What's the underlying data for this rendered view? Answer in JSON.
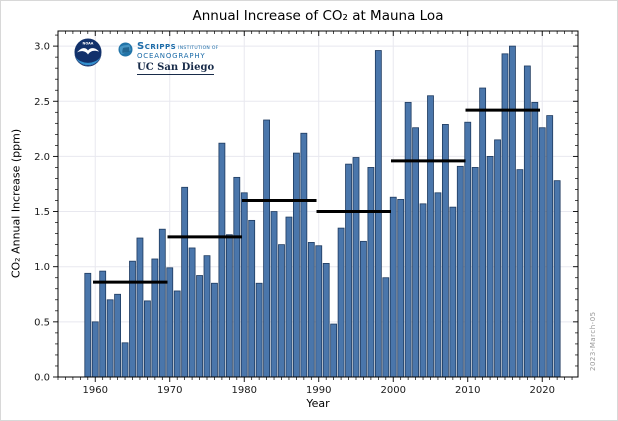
{
  "title": "Annual Increase of CO₂ at Mauna Loa",
  "x_axis_label": "Year",
  "y_axis_label": "CO₂ Annual Increase (ppm)",
  "footer_date": "2023-March-05",
  "logos": {
    "noaa_label": "NOAA",
    "scripps_name": "Scripps",
    "scripps_suffix": "Institution of",
    "scripps_line2": "Oceanography",
    "ucsd": "UC San Diego"
  },
  "chart_data": {
    "type": "bar",
    "title": "Annual Increase of CO₂ at Mauna Loa",
    "xlabel": "Year",
    "ylabel": "CO₂ Annual Increase (ppm)",
    "x": [
      1959,
      1960,
      1961,
      1962,
      1963,
      1964,
      1965,
      1966,
      1967,
      1968,
      1969,
      1970,
      1971,
      1972,
      1973,
      1974,
      1975,
      1976,
      1977,
      1978,
      1979,
      1980,
      1981,
      1982,
      1983,
      1984,
      1985,
      1986,
      1987,
      1988,
      1989,
      1990,
      1991,
      1992,
      1993,
      1994,
      1995,
      1996,
      1997,
      1998,
      1999,
      2000,
      2001,
      2002,
      2003,
      2004,
      2005,
      2006,
      2007,
      2008,
      2009,
      2010,
      2011,
      2012,
      2013,
      2014,
      2015,
      2016,
      2017,
      2018,
      2019,
      2020,
      2021,
      2022
    ],
    "values": [
      0.94,
      0.5,
      0.96,
      0.7,
      0.75,
      0.31,
      1.05,
      1.26,
      0.69,
      1.07,
      1.34,
      0.99,
      0.78,
      1.72,
      1.17,
      0.92,
      1.1,
      0.85,
      2.12,
      1.29,
      1.81,
      1.67,
      1.42,
      0.85,
      2.33,
      1.5,
      1.2,
      1.45,
      2.03,
      2.21,
      1.22,
      1.19,
      1.03,
      0.48,
      1.35,
      1.93,
      1.99,
      1.23,
      1.9,
      2.96,
      0.9,
      1.63,
      1.61,
      2.49,
      2.26,
      1.57,
      2.55,
      1.67,
      2.29,
      1.54,
      1.91,
      2.31,
      1.9,
      2.62,
      2.0,
      2.15,
      2.93,
      3.0,
      1.88,
      2.82,
      2.49,
      2.26,
      2.37,
      1.78
    ],
    "xlim": [
      1955,
      2024.8
    ],
    "ylim": [
      0,
      3.137
    ],
    "xticks": [
      1960,
      1970,
      1980,
      1990,
      2000,
      2010,
      2020
    ],
    "yticks": [
      0,
      0.5,
      1,
      1.5,
      2,
      2.5,
      3
    ],
    "grid": true,
    "grid_color": "#e8e8ef",
    "bar_color": "#4a76ab",
    "bar_edge_color": "#1e3a5f",
    "legend": "none",
    "decade_averages": [
      {
        "label": "1960s",
        "start": 1960,
        "value": 0.86
      },
      {
        "label": "1970s",
        "start": 1970,
        "value": 1.27
      },
      {
        "label": "1980s",
        "start": 1980,
        "value": 1.6
      },
      {
        "label": "1990s",
        "start": 1990,
        "value": 1.5
      },
      {
        "label": "2000s",
        "start": 2000,
        "value": 1.96
      },
      {
        "label": "2010s",
        "start": 2010,
        "value": 2.42
      }
    ]
  }
}
